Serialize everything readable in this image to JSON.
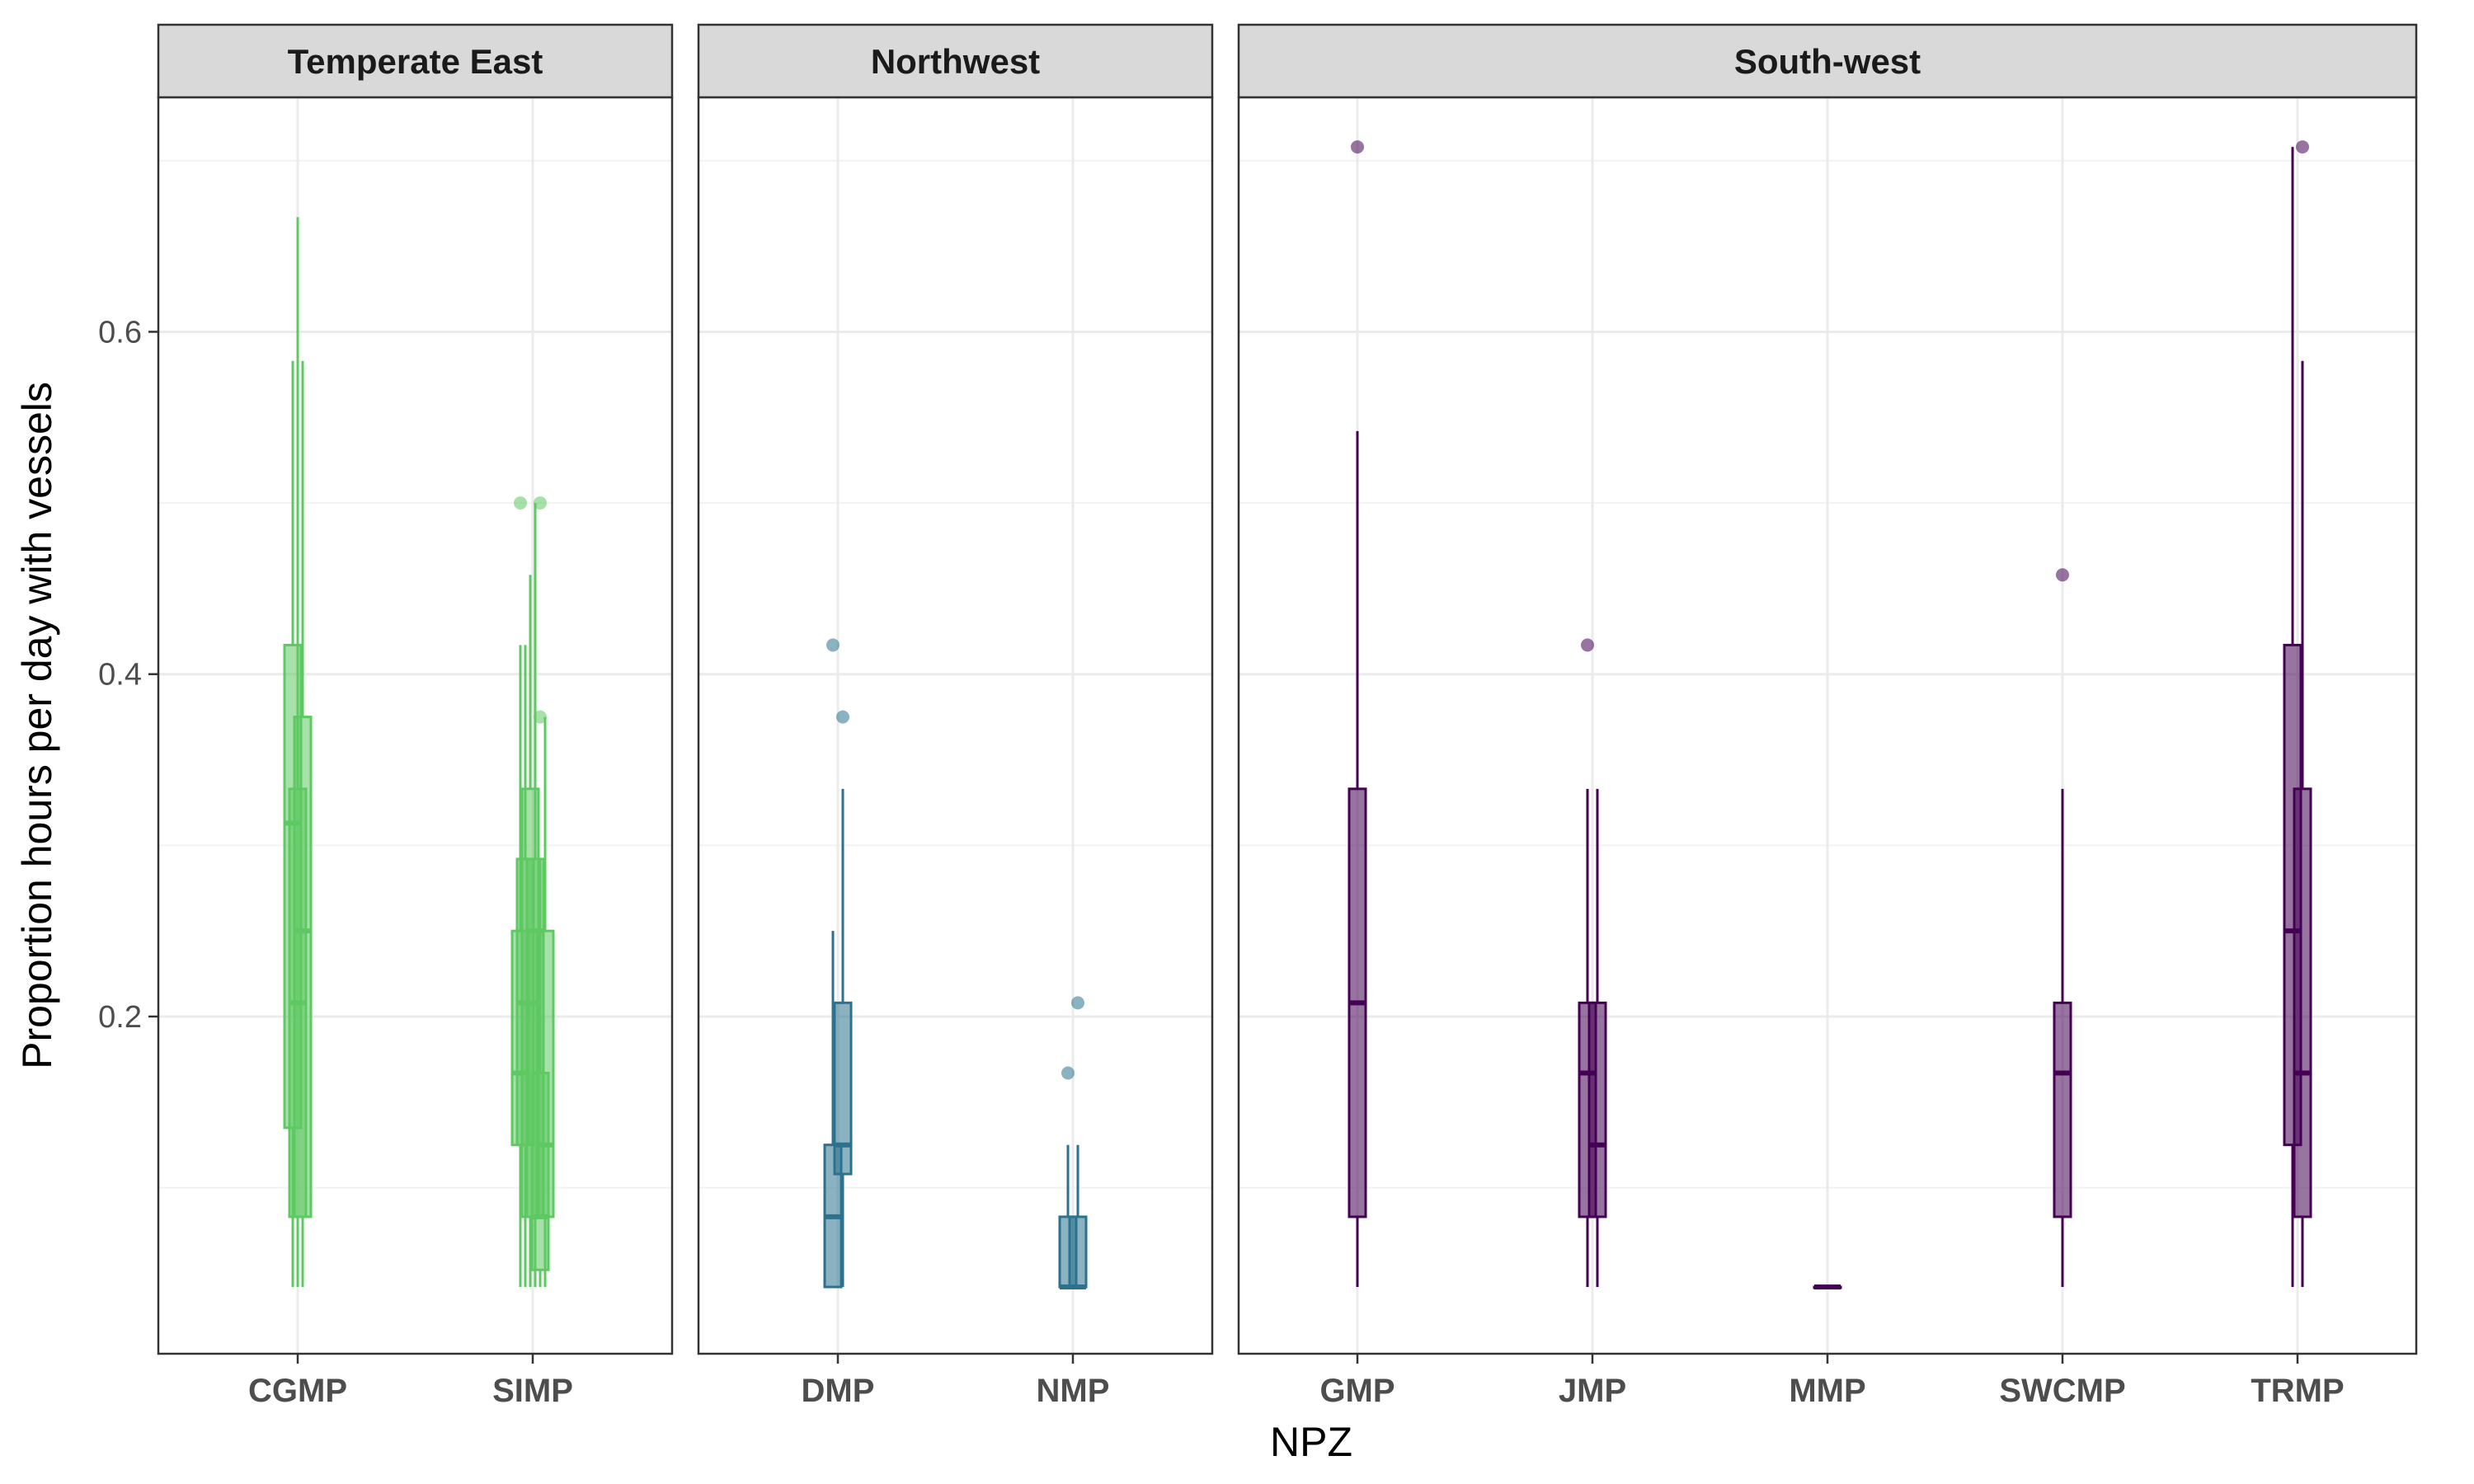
{
  "chart_data": {
    "type": "boxplot",
    "xlabel": "NPZ",
    "ylabel": "Proportion hours per day with vessels",
    "ylim": [
      0.003,
      0.737
    ],
    "yticks": [
      0.2,
      0.4,
      0.6
    ],
    "ytick_labels": [
      "0.2",
      "0.4",
      "0.6"
    ],
    "grid": true,
    "facets": [
      {
        "title": "Temperate East",
        "color": "#5ec962",
        "categories": [
          "CGMP",
          "SIMP"
        ],
        "boxes": [
          {
            "category": "CGMP",
            "offset": -0.3,
            "whisker_low": 0.042,
            "q1": 0.135,
            "median": 0.313,
            "q3": 0.417,
            "whisker_high": 0.583,
            "outliers": []
          },
          {
            "category": "CGMP",
            "offset": 0.0,
            "whisker_low": 0.042,
            "q1": 0.083,
            "median": 0.208,
            "q3": 0.333,
            "whisker_high": 0.667,
            "outliers": []
          },
          {
            "category": "CGMP",
            "offset": 0.3,
            "whisker_low": 0.042,
            "q1": 0.083,
            "median": 0.25,
            "q3": 0.375,
            "whisker_high": 0.583,
            "outliers": []
          },
          {
            "category": "SIMP",
            "offset": -0.75,
            "whisker_low": 0.042,
            "q1": 0.125,
            "median": 0.167,
            "q3": 0.25,
            "whisker_high": 0.417,
            "outliers": [
              0.5
            ]
          },
          {
            "category": "SIMP",
            "offset": -0.45,
            "whisker_low": 0.042,
            "q1": 0.125,
            "median": 0.208,
            "q3": 0.292,
            "whisker_high": 0.417,
            "outliers": []
          },
          {
            "category": "SIMP",
            "offset": -0.15,
            "whisker_low": 0.042,
            "q1": 0.083,
            "median": 0.208,
            "q3": 0.333,
            "whisker_high": 0.458,
            "outliers": []
          },
          {
            "category": "SIMP",
            "offset": 0.15,
            "whisker_low": 0.042,
            "q1": 0.083,
            "median": 0.25,
            "q3": 0.292,
            "whisker_high": 0.5,
            "outliers": []
          },
          {
            "category": "SIMP",
            "offset": 0.45,
            "whisker_low": 0.042,
            "q1": 0.052,
            "median": 0.083,
            "q3": 0.167,
            "whisker_high": 0.292,
            "outliers": [
              0.5,
              0.375
            ]
          },
          {
            "category": "SIMP",
            "offset": 0.75,
            "whisker_low": 0.042,
            "q1": 0.083,
            "median": 0.125,
            "q3": 0.25,
            "whisker_high": 0.375,
            "outliers": []
          }
        ]
      },
      {
        "title": "Northwest",
        "color": "#2c728e",
        "categories": [
          "DMP",
          "NMP"
        ],
        "boxes": [
          {
            "category": "DMP",
            "offset": -0.3,
            "whisker_low": 0.042,
            "q1": 0.042,
            "median": 0.083,
            "q3": 0.125,
            "whisker_high": 0.25,
            "outliers": [
              0.417
            ]
          },
          {
            "category": "DMP",
            "offset": 0.3,
            "whisker_low": 0.042,
            "q1": 0.108,
            "median": 0.125,
            "q3": 0.208,
            "whisker_high": 0.333,
            "outliers": [
              0.375
            ]
          },
          {
            "category": "NMP",
            "offset": -0.3,
            "whisker_low": 0.042,
            "q1": 0.042,
            "median": 0.042,
            "q3": 0.083,
            "whisker_high": 0.125,
            "outliers": [
              0.167
            ]
          },
          {
            "category": "NMP",
            "offset": 0.3,
            "whisker_low": 0.042,
            "q1": 0.042,
            "median": 0.042,
            "q3": 0.083,
            "whisker_high": 0.125,
            "outliers": [
              0.208
            ]
          }
        ]
      },
      {
        "title": "South-west",
        "color": "#440154",
        "categories": [
          "GMP",
          "JMP",
          "MMP",
          "SWCMP",
          "TRMP"
        ],
        "boxes": [
          {
            "category": "GMP",
            "offset": 0.0,
            "whisker_low": 0.042,
            "q1": 0.083,
            "median": 0.208,
            "q3": 0.333,
            "whisker_high": 0.542,
            "outliers": [
              0.708
            ]
          },
          {
            "category": "JMP",
            "offset": -0.3,
            "whisker_low": 0.042,
            "q1": 0.083,
            "median": 0.167,
            "q3": 0.208,
            "whisker_high": 0.333,
            "outliers": [
              0.417
            ]
          },
          {
            "category": "JMP",
            "offset": 0.3,
            "whisker_low": 0.042,
            "q1": 0.083,
            "median": 0.125,
            "q3": 0.208,
            "whisker_high": 0.333,
            "outliers": []
          },
          {
            "category": "MMP",
            "offset": -0.3,
            "whisker_low": 0.042,
            "q1": 0.042,
            "median": 0.042,
            "q3": 0.042,
            "whisker_high": 0.042,
            "outliers": []
          },
          {
            "category": "MMP",
            "offset": 0.3,
            "whisker_low": 0.042,
            "q1": 0.042,
            "median": 0.042,
            "q3": 0.042,
            "whisker_high": 0.042,
            "outliers": []
          },
          {
            "category": "SWCMP",
            "offset": 0.0,
            "whisker_low": 0.042,
            "q1": 0.083,
            "median": 0.167,
            "q3": 0.208,
            "whisker_high": 0.333,
            "outliers": [
              0.458
            ]
          },
          {
            "category": "TRMP",
            "offset": -0.3,
            "whisker_low": 0.042,
            "q1": 0.125,
            "median": 0.25,
            "q3": 0.417,
            "whisker_high": 0.708,
            "outliers": []
          },
          {
            "category": "TRMP",
            "offset": 0.3,
            "whisker_low": 0.042,
            "q1": 0.083,
            "median": 0.167,
            "q3": 0.333,
            "whisker_high": 0.583,
            "outliers": [
              0.708
            ]
          }
        ]
      }
    ]
  }
}
